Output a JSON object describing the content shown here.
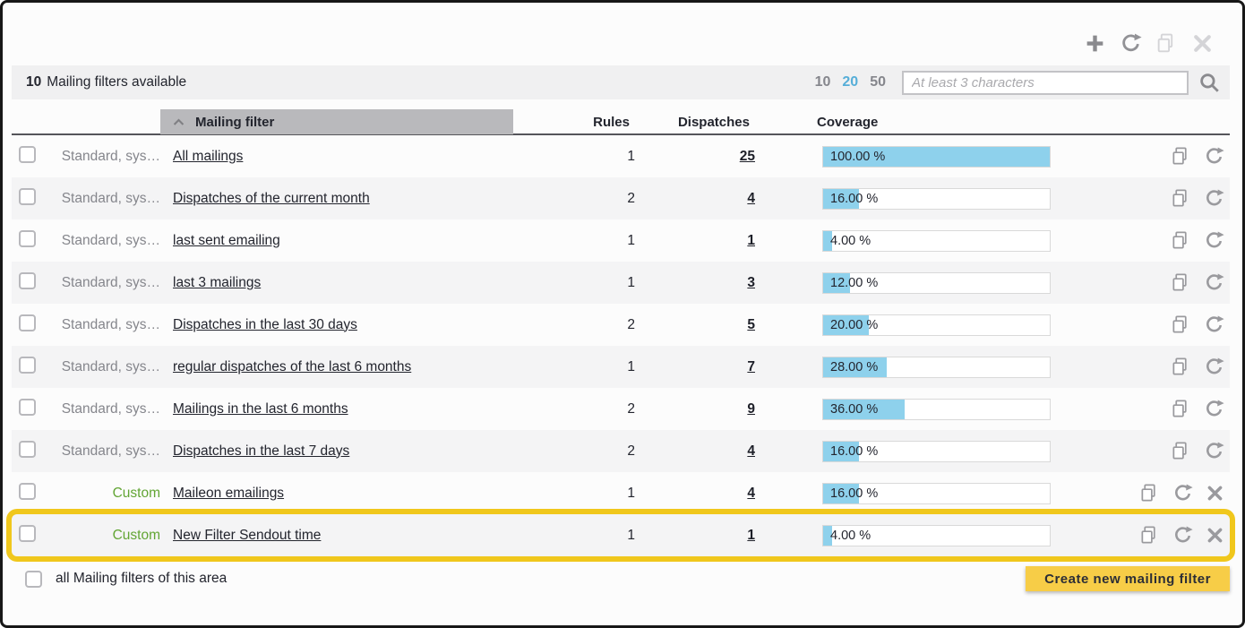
{
  "toolbar": {
    "icons": [
      {
        "name": "add",
        "enabled": true
      },
      {
        "name": "refresh",
        "enabled": true
      },
      {
        "name": "copy",
        "enabled": false
      },
      {
        "name": "close",
        "enabled": false
      }
    ]
  },
  "header": {
    "count": "10",
    "count_label": "Mailing filters available",
    "page_sizes": [
      {
        "label": "10",
        "active": false
      },
      {
        "label": "20",
        "active": true
      },
      {
        "label": "50",
        "active": false
      }
    ],
    "search_placeholder": "At least 3 characters"
  },
  "table": {
    "columns": {
      "filter": "Mailing filter",
      "rules": "Rules",
      "dispatches": "Dispatches",
      "coverage": "Coverage"
    },
    "sort": {
      "column": "Mailing filter",
      "direction": "ascending"
    },
    "rows": [
      {
        "type": "Standard, sys…",
        "custom": false,
        "name": "All mailings",
        "rules": "1",
        "dispatches": "25",
        "coverage": "100.00 %",
        "pct": 100,
        "highlighted": false
      },
      {
        "type": "Standard, sys…",
        "custom": false,
        "name": "Dispatches of the current month",
        "rules": "2",
        "dispatches": "4",
        "coverage": "16.00 %",
        "pct": 16,
        "highlighted": false
      },
      {
        "type": "Standard, sys…",
        "custom": false,
        "name": "last sent emailing",
        "rules": "1",
        "dispatches": "1",
        "coverage": "4.00 %",
        "pct": 4,
        "highlighted": false
      },
      {
        "type": "Standard, sys…",
        "custom": false,
        "name": "last 3 mailings",
        "rules": "1",
        "dispatches": "3",
        "coverage": "12.00 %",
        "pct": 12,
        "highlighted": false
      },
      {
        "type": "Standard, sys…",
        "custom": false,
        "name": "Dispatches in the last 30 days",
        "rules": "2",
        "dispatches": "5",
        "coverage": "20.00 %",
        "pct": 20,
        "highlighted": false
      },
      {
        "type": "Standard, sys…",
        "custom": false,
        "name": "regular dispatches of the last 6 months",
        "rules": "1",
        "dispatches": "7",
        "coverage": "28.00 %",
        "pct": 28,
        "highlighted": false
      },
      {
        "type": "Standard, sys…",
        "custom": false,
        "name": "Mailings in the last 6 months",
        "rules": "2",
        "dispatches": "9",
        "coverage": "36.00 %",
        "pct": 36,
        "highlighted": false
      },
      {
        "type": "Standard, sys…",
        "custom": false,
        "name": "Dispatches in the last 7 days",
        "rules": "2",
        "dispatches": "4",
        "coverage": "16.00 %",
        "pct": 16,
        "highlighted": false
      },
      {
        "type": "Custom",
        "custom": true,
        "name": "Maileon emailings",
        "rules": "1",
        "dispatches": "4",
        "coverage": "16.00 %",
        "pct": 16,
        "highlighted": false
      },
      {
        "type": "Custom",
        "custom": true,
        "name": "New Filter Sendout time",
        "rules": "1",
        "dispatches": "1",
        "coverage": "4.00 %",
        "pct": 4,
        "highlighted": true
      }
    ]
  },
  "footer": {
    "select_all_label": "all Mailing filters of this area",
    "create_button": "Create new mailing filter"
  },
  "colors": {
    "accent_blue": "#56aed8",
    "coverage_bar_fill": "#8ed1ec",
    "custom_green": "#62a534",
    "highlight_yellow": "#f0c71c",
    "button_yellow": "#f7cd47",
    "header_sort_bg": "#b9b9bc",
    "alt_row_bg": "#f4f4f5",
    "muted_text": "#85868c"
  }
}
